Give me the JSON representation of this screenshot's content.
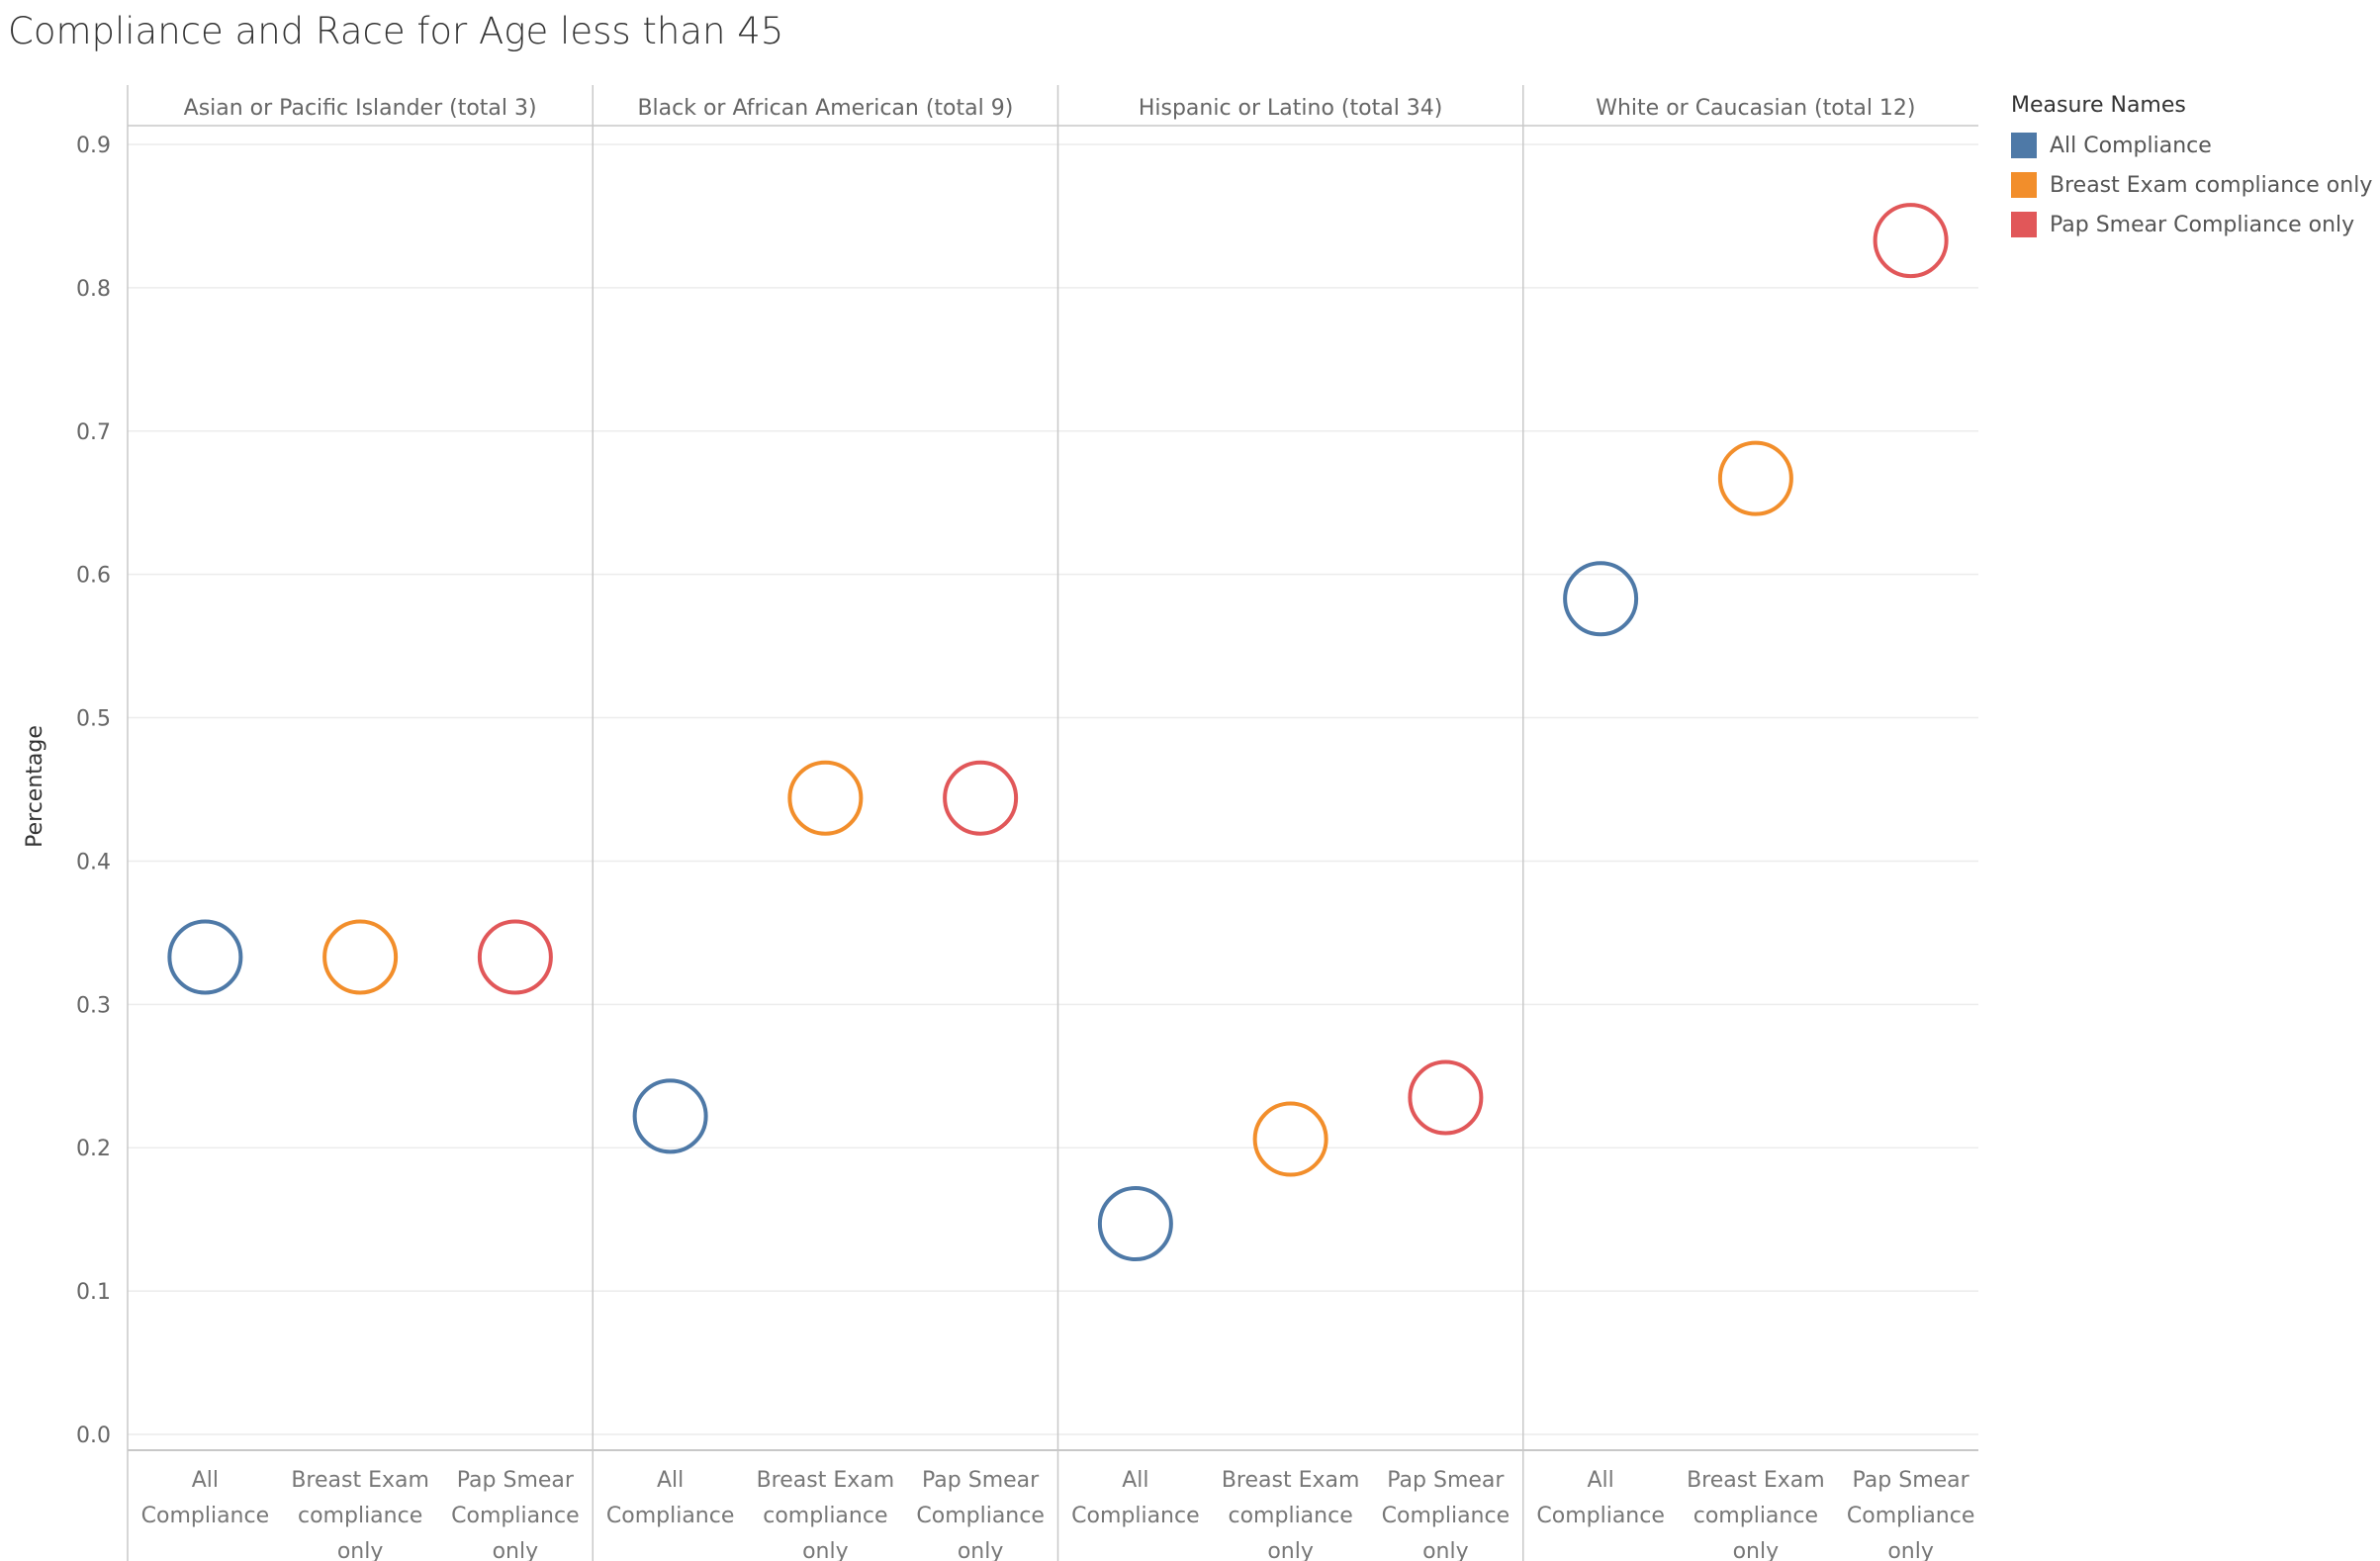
{
  "chart_data": {
    "type": "scatter",
    "title": "Compliance and Race for Age less than 45",
    "ylabel": "Percentage",
    "ylim": [
      0,
      0.9
    ],
    "yticks": [
      0.0,
      0.1,
      0.2,
      0.3,
      0.4,
      0.5,
      0.6,
      0.7,
      0.8,
      0.9
    ],
    "ytick_labels": [
      "0.0",
      "0.1",
      "0.2",
      "0.3",
      "0.4",
      "0.5",
      "0.6",
      "0.7",
      "0.8",
      "0.9"
    ],
    "grid": true,
    "legend_position": "top-right",
    "legend_title": "Measure Names",
    "series": [
      {
        "name": "All Compliance",
        "color": "#4e79a7",
        "label_lines": [
          "All",
          "Compliance"
        ]
      },
      {
        "name": "Breast Exam compliance only",
        "color": "#f28e2b",
        "label_lines": [
          "Breast Exam",
          "compliance",
          "only"
        ]
      },
      {
        "name": "Pap Smear Compliance only",
        "color": "#e15759",
        "label_lines": [
          "Pap Smear",
          "Compliance",
          "only"
        ]
      }
    ],
    "panels": [
      {
        "name": "Asian or Pacific Islander (total 3)",
        "values": [
          0.333,
          0.333,
          0.333
        ]
      },
      {
        "name": "Black or African American (total 9)",
        "values": [
          0.222,
          0.444,
          0.444
        ]
      },
      {
        "name": "Hispanic or Latino (total 34)",
        "values": [
          0.147,
          0.206,
          0.235
        ]
      },
      {
        "name": "White or Caucasian (total 12)",
        "values": [
          0.583,
          0.667,
          0.833
        ]
      }
    ]
  }
}
